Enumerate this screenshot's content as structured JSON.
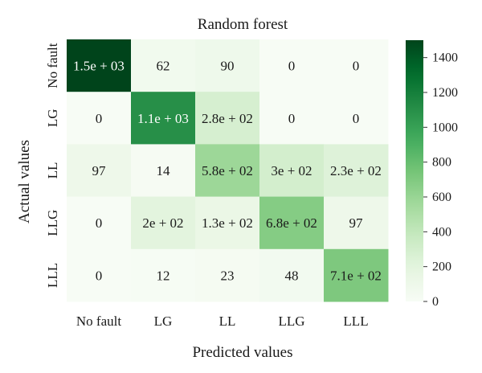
{
  "chart_data": {
    "type": "heatmap",
    "title": "Random forest",
    "xlabel": "Predicted values",
    "ylabel": "Actual values",
    "x_categories": [
      "No fault",
      "LG",
      "LL",
      "LLG",
      "LLL"
    ],
    "y_categories": [
      "No fault",
      "LG",
      "LL",
      "LLG",
      "LLL"
    ],
    "values": [
      [
        1500,
        62,
        90,
        0,
        0
      ],
      [
        0,
        1100,
        280,
        0,
        0
      ],
      [
        97,
        14,
        580,
        300,
        230
      ],
      [
        0,
        200,
        130,
        680,
        97
      ],
      [
        0,
        12,
        23,
        48,
        710
      ]
    ],
    "labels": [
      [
        "1.5e + 03",
        "62",
        "90",
        "0",
        "0"
      ],
      [
        "0",
        "1.1e + 03",
        "2.8e + 02",
        "0",
        "0"
      ],
      [
        "97",
        "14",
        "5.8e + 02",
        "3e + 02",
        "2.3e + 02"
      ],
      [
        "0",
        "2e + 02",
        "1.3e + 02",
        "6.8e + 02",
        "97"
      ],
      [
        "0",
        "12",
        "23",
        "48",
        "7.1e + 02"
      ]
    ],
    "colorbar": {
      "min": 0,
      "max": 1500,
      "ticks": [
        0,
        200,
        400,
        600,
        800,
        1000,
        1200,
        1400
      ],
      "colormap": "Greens"
    }
  }
}
